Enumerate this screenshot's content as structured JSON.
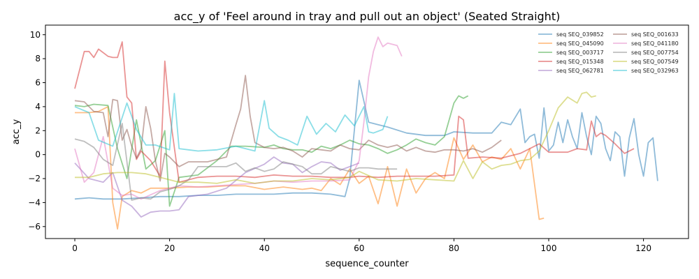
{
  "chart_data": {
    "type": "line",
    "title": "acc_y of 'Feel around in tray and pull out an object' (Seated Straight)",
    "xlabel": "sequence_counter",
    "ylabel": "acc_y",
    "xlim": [
      -6.2,
      129.5
    ],
    "ylim": [
      -7,
      10.8
    ],
    "xticks": [
      0,
      20,
      40,
      60,
      80,
      100,
      120
    ],
    "yticks": [
      -6,
      -4,
      -2,
      0,
      2,
      4,
      6,
      8,
      10
    ],
    "grid": false,
    "legend_position": "top-right",
    "series": [
      {
        "name": "seq SEQ_039852",
        "color": "#1f77b4",
        "x": [
          0,
          3,
          6,
          10,
          14,
          18,
          22,
          26,
          30,
          34,
          38,
          42,
          46,
          50,
          54,
          57,
          58,
          60,
          62,
          64,
          66,
          70,
          74,
          78,
          80,
          84,
          88,
          90,
          92,
          94,
          95,
          96,
          97,
          98,
          99,
          100,
          101,
          102,
          103,
          104,
          105,
          106,
          107,
          108,
          109,
          110,
          111,
          112,
          113,
          114,
          115,
          116,
          117,
          118,
          119,
          120,
          121,
          122,
          123
        ],
        "y": [
          -3.7,
          -3.6,
          -3.7,
          -3.7,
          -3.6,
          -3.5,
          -3.5,
          -3.4,
          -3.4,
          -3.3,
          -3.3,
          -3.3,
          -3.2,
          -3.2,
          -3.3,
          -3.5,
          -2.0,
          6.2,
          2.7,
          2.5,
          2.3,
          1.8,
          1.6,
          1.6,
          1.9,
          1.8,
          1.8,
          2.7,
          2.5,
          3.8,
          1.0,
          1.5,
          1.7,
          -0.3,
          3.9,
          0.3,
          0.8,
          2.7,
          1.0,
          2.9,
          1.5,
          0.5,
          3.5,
          1.5,
          0.0,
          3.2,
          2.6,
          0.5,
          -0.5,
          1.9,
          1.5,
          -1.8,
          1.4,
          3.0,
          0.0,
          -1.8,
          1.0,
          1.4,
          -2.2
        ]
      },
      {
        "name": "seq SEQ_045090",
        "color": "#ff7f0e",
        "x": [
          0,
          3,
          5,
          7,
          8,
          9,
          10,
          12,
          14,
          16,
          20,
          24,
          28,
          32,
          36,
          40,
          44,
          48,
          50,
          52,
          54,
          56,
          58,
          60,
          62,
          64,
          66,
          68,
          70,
          72,
          74,
          76,
          78,
          80,
          82,
          84,
          86,
          88,
          90,
          92,
          94,
          96,
          98,
          99
        ],
        "y": [
          3.5,
          3.5,
          3.6,
          4.0,
          -4.0,
          -6.2,
          -3.5,
          -3.0,
          -3.2,
          -2.8,
          -2.8,
          -2.7,
          -2.7,
          -2.6,
          -2.6,
          -2.9,
          -2.7,
          -2.9,
          -2.8,
          -3.0,
          -2.0,
          -2.5,
          -1.2,
          -2.4,
          -1.8,
          -4.1,
          -1.0,
          -4.3,
          -1.2,
          -3.2,
          -2.0,
          -1.5,
          -2.0,
          1.4,
          -0.4,
          0.8,
          -0.6,
          -0.2,
          -0.4,
          0.5,
          -1.2,
          0.5,
          -5.4,
          -5.3
        ]
      },
      {
        "name": "seq SEQ_003717",
        "color": "#2ca02c",
        "x": [
          0,
          2,
          4,
          7,
          9,
          11,
          13,
          15,
          17,
          19,
          20,
          22,
          26,
          30,
          33,
          36,
          40,
          42,
          44,
          46,
          48,
          50,
          52,
          54,
          56,
          58,
          60,
          62,
          64,
          66,
          68,
          70,
          72,
          74,
          76,
          78,
          80,
          81,
          82,
          83
        ],
        "y": [
          4.1,
          4.0,
          4.2,
          4.1,
          0.5,
          -2.0,
          2.9,
          -1.2,
          -0.5,
          2.0,
          -4.3,
          -1.9,
          -1.7,
          -0.5,
          0.7,
          0.7,
          0.6,
          0.8,
          0.5,
          0.4,
          0.4,
          0.2,
          0.7,
          0.5,
          0.8,
          1.2,
          0.9,
          0.8,
          0.5,
          0.1,
          0.4,
          0.8,
          1.3,
          1.0,
          0.8,
          1.5,
          4.3,
          4.9,
          4.7,
          4.9
        ]
      },
      {
        "name": "seq SEQ_015348",
        "color": "#d62728",
        "x": [
          0,
          2,
          3,
          4,
          5,
          7,
          8,
          9,
          10,
          11,
          12,
          13,
          14,
          16,
          18,
          19,
          20,
          22,
          26,
          30,
          34,
          38,
          42,
          46,
          50,
          54,
          58,
          60,
          64,
          68,
          72,
          76,
          80,
          81,
          82,
          83,
          86,
          90,
          94,
          98,
          100,
          104,
          106,
          108,
          109,
          110,
          111,
          112,
          114,
          116,
          118
        ],
        "y": [
          5.5,
          8.6,
          8.6,
          8.1,
          8.8,
          8.2,
          8.1,
          8.1,
          9.4,
          4.8,
          4.3,
          -0.4,
          0.3,
          -0.5,
          -1.8,
          7.8,
          3.5,
          -2.3,
          -1.9,
          -1.8,
          -1.8,
          -1.9,
          -1.7,
          -1.8,
          -1.8,
          -1.9,
          -1.9,
          -1.8,
          -1.9,
          -1.8,
          -1.8,
          -1.8,
          -1.7,
          3.2,
          2.9,
          -0.3,
          -0.2,
          -0.3,
          0.1,
          0.9,
          0.2,
          0.2,
          0.5,
          0.4,
          2.8,
          1.5,
          1.8,
          1.6,
          0.9,
          0.1,
          0.5
        ]
      },
      {
        "name": "seq SEQ_062781",
        "color": "#9467bd",
        "x": [
          0,
          3,
          6,
          8,
          10,
          12,
          14,
          16,
          18,
          20,
          22,
          24,
          28,
          32,
          36,
          40,
          42,
          44,
          46,
          48,
          50,
          52,
          54,
          56,
          58,
          60
        ],
        "y": [
          -0.7,
          -2.0,
          -2.3,
          -1.5,
          -3.8,
          -4.3,
          -5.2,
          -4.8,
          -4.7,
          -4.7,
          -4.6,
          -3.5,
          -3.3,
          -2.8,
          -1.5,
          -0.8,
          -0.2,
          -0.7,
          -0.8,
          -1.5,
          -1.0,
          -0.6,
          -0.7,
          -1.3,
          -1.0,
          -0.7
        ]
      },
      {
        "name": "seq SEQ_001633",
        "color": "#8c564b",
        "x": [
          0,
          2,
          4,
          6,
          7,
          8,
          9,
          10,
          11,
          12,
          13,
          14,
          15,
          16,
          17,
          18,
          19,
          20,
          22,
          24,
          28,
          32,
          34,
          35,
          36,
          37,
          38,
          40,
          42,
          44,
          46,
          48,
          50,
          52,
          54,
          56,
          58,
          60,
          62,
          64,
          66,
          68,
          70,
          72,
          74,
          76,
          78,
          80,
          82,
          84,
          86,
          88,
          90
        ],
        "y": [
          4.5,
          4.4,
          3.6,
          3.5,
          1.5,
          4.6,
          4.5,
          1.2,
          2.1,
          0.7,
          -0.3,
          0.5,
          4.0,
          2.2,
          -0.5,
          -2.2,
          0.1,
          -0.2,
          -1.0,
          -0.6,
          -0.6,
          -0.2,
          2.5,
          3.8,
          6.6,
          3.2,
          1.0,
          0.6,
          0.5,
          0.6,
          0.3,
          -0.2,
          0.5,
          0.4,
          0.3,
          0.8,
          0.5,
          0.4,
          1.2,
          0.8,
          0.6,
          0.8,
          0.3,
          0.6,
          0.3,
          0.2,
          0.4,
          0.4,
          0.3,
          0.5,
          0.2,
          0.6,
          1.2
        ]
      },
      {
        "name": "seq SEQ_041180",
        "color": "#e377c2",
        "x": [
          0,
          2,
          4,
          6,
          8,
          10,
          12,
          14,
          18,
          22,
          26,
          30,
          34,
          38,
          42,
          46,
          50,
          54,
          58,
          60,
          61,
          62,
          63,
          64,
          65,
          66,
          67,
          68,
          69
        ],
        "y": [
          0.5,
          -2.3,
          -1.5,
          1.5,
          -2.8,
          -3.4,
          -3.3,
          -3.7,
          -3.0,
          -2.6,
          -2.7,
          -2.6,
          -2.5,
          -2.4,
          -2.2,
          -2.3,
          -2.2,
          -2.2,
          -2.1,
          -0.5,
          2.7,
          6.5,
          8.6,
          9.8,
          9.0,
          9.3,
          9.2,
          9.1,
          8.2
        ]
      },
      {
        "name": "seq SEQ_007754",
        "color": "#7f7f7f",
        "x": [
          0,
          2,
          4,
          6,
          8,
          10,
          12,
          14,
          16,
          18,
          20,
          22,
          24,
          26,
          28,
          30,
          32,
          34,
          36,
          38,
          40,
          42,
          44,
          46,
          48,
          50,
          52,
          54,
          56,
          58,
          60,
          62,
          64,
          66,
          68
        ],
        "y": [
          1.3,
          1.1,
          0.6,
          -0.4,
          -0.9,
          2.6,
          -3.8,
          -3.6,
          -3.7,
          -3.1,
          -2.9,
          -2.6,
          -2.1,
          -1.0,
          -1.0,
          -1.0,
          -1.0,
          -0.7,
          -1.4,
          -1.1,
          -1.4,
          -1.2,
          -0.6,
          -0.8,
          -1.0,
          -1.6,
          -1.6,
          -1.0,
          -1.2,
          -1.4,
          -1.1,
          -1.1,
          -1.2,
          -1.2,
          -1.2
        ]
      },
      {
        "name": "seq SEQ_007549",
        "color": "#bcbd22",
        "x": [
          0,
          3,
          6,
          9,
          12,
          15,
          18,
          22,
          26,
          30,
          34,
          38,
          42,
          46,
          50,
          54,
          58,
          60,
          64,
          68,
          72,
          76,
          80,
          82,
          84,
          86,
          88,
          90,
          92,
          94,
          96,
          98,
          100,
          102,
          104,
          106,
          107,
          108,
          109,
          110
        ],
        "y": [
          -1.9,
          -1.9,
          -1.6,
          -1.5,
          -1.5,
          -1.6,
          -1.9,
          -2.3,
          -2.3,
          -2.4,
          -2.1,
          -2.4,
          -2.2,
          -2.2,
          -2.0,
          -2.1,
          -1.9,
          -1.4,
          -2.1,
          -2.2,
          -2.0,
          -2.1,
          -2.2,
          -0.5,
          -2.0,
          -0.6,
          -1.2,
          -0.9,
          -0.8,
          -0.5,
          -0.4,
          0.3,
          2.0,
          3.9,
          4.8,
          4.3,
          5.1,
          5.2,
          4.8,
          4.9
        ]
      },
      {
        "name": "seq SEQ_032963",
        "color": "#17becf",
        "x": [
          0,
          3,
          5,
          8,
          11,
          13,
          15,
          17,
          20,
          21,
          22,
          24,
          26,
          30,
          34,
          38,
          40,
          41,
          43,
          45,
          47,
          49,
          51,
          53,
          55,
          57,
          59,
          61,
          62,
          63,
          65,
          66
        ],
        "y": [
          4.0,
          3.5,
          1.2,
          0.7,
          4.3,
          2.1,
          0.8,
          0.8,
          0.4,
          5.1,
          0.5,
          0.4,
          0.3,
          0.4,
          0.7,
          0.3,
          4.5,
          2.2,
          1.5,
          1.2,
          0.8,
          3.2,
          1.7,
          2.6,
          1.9,
          3.3,
          2.4,
          4.0,
          1.9,
          1.8,
          2.1,
          3.2
        ]
      }
    ]
  }
}
